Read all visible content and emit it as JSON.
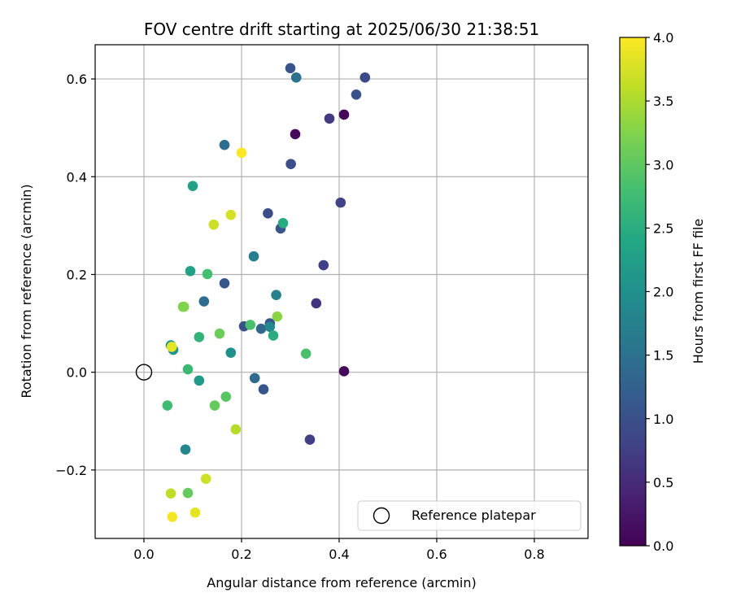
{
  "chart_data": {
    "type": "scatter",
    "title": "FOV centre drift starting at 2025/06/30 21:38:51",
    "xlabel": "Angular distance from reference (arcmin)",
    "ylabel": "Rotation from reference (arcmin)",
    "xlim": [
      -0.1,
      0.91
    ],
    "ylim": [
      -0.34,
      0.67
    ],
    "x_ticks": [
      "0.0",
      "0.2",
      "0.4",
      "0.6",
      "0.8"
    ],
    "x_tick_values": [
      0.0,
      0.2,
      0.4,
      0.6,
      0.8
    ],
    "y_ticks": [
      "−0.2",
      "0.0",
      "0.2",
      "0.4",
      "0.6"
    ],
    "y_tick_values": [
      -0.2,
      0.0,
      0.2,
      0.4,
      0.6
    ],
    "grid": true,
    "legend": {
      "position": "lower-right",
      "entries": [
        {
          "label": "Reference platepar",
          "marker": "open-circle"
        }
      ]
    },
    "reference_point": {
      "x": 0.0,
      "y": 0.0
    },
    "colorbar": {
      "label": "Hours from first FF file",
      "colormap": "viridis",
      "range": [
        0.0,
        4.0
      ],
      "ticks": [
        "0.0",
        "0.5",
        "1.0",
        "1.5",
        "2.0",
        "2.5",
        "3.0",
        "3.5",
        "4.0"
      ],
      "tick_values": [
        0.0,
        0.5,
        1.0,
        1.5,
        2.0,
        2.5,
        3.0,
        3.5,
        4.0
      ]
    },
    "points": [
      {
        "x": 0.41,
        "y": 0.527,
        "c": 0.05
      },
      {
        "x": 0.31,
        "y": 0.487,
        "c": 0.1
      },
      {
        "x": 0.41,
        "y": 0.002,
        "c": 0.1
      },
      {
        "x": 0.38,
        "y": 0.519,
        "c": 0.7
      },
      {
        "x": 0.353,
        "y": 0.141,
        "c": 0.6
      },
      {
        "x": 0.34,
        "y": -0.138,
        "c": 0.75
      },
      {
        "x": 0.368,
        "y": 0.219,
        "c": 0.75
      },
      {
        "x": 0.403,
        "y": 0.347,
        "c": 0.8
      },
      {
        "x": 0.453,
        "y": 0.603,
        "c": 0.9
      },
      {
        "x": 0.435,
        "y": 0.568,
        "c": 1.0
      },
      {
        "x": 0.301,
        "y": 0.426,
        "c": 0.95
      },
      {
        "x": 0.3,
        "y": 0.622,
        "c": 1.05
      },
      {
        "x": 0.254,
        "y": 0.325,
        "c": 0.95
      },
      {
        "x": 0.28,
        "y": 0.294,
        "c": 1.05
      },
      {
        "x": 0.205,
        "y": 0.094,
        "c": 1.0
      },
      {
        "x": 0.258,
        "y": 0.1,
        "c": 1.05
      },
      {
        "x": 0.245,
        "y": -0.035,
        "c": 1.1
      },
      {
        "x": 0.165,
        "y": 0.182,
        "c": 1.1
      },
      {
        "x": 0.24,
        "y": 0.089,
        "c": 1.35
      },
      {
        "x": 0.227,
        "y": -0.012,
        "c": 1.4
      },
      {
        "x": 0.312,
        "y": 0.603,
        "c": 1.5
      },
      {
        "x": 0.165,
        "y": 0.465,
        "c": 1.45
      },
      {
        "x": 0.123,
        "y": 0.145,
        "c": 1.45
      },
      {
        "x": 0.225,
        "y": 0.237,
        "c": 1.7
      },
      {
        "x": 0.271,
        "y": 0.158,
        "c": 1.75
      },
      {
        "x": 0.258,
        "y": 0.093,
        "c": 1.9
      },
      {
        "x": 0.085,
        "y": -0.158,
        "c": 1.85
      },
      {
        "x": 0.178,
        "y": 0.04,
        "c": 2.0
      },
      {
        "x": 0.06,
        "y": 0.046,
        "c": 2.05
      },
      {
        "x": 0.055,
        "y": 0.055,
        "c": 2.1
      },
      {
        "x": 0.113,
        "y": -0.017,
        "c": 2.15
      },
      {
        "x": 0.1,
        "y": 0.381,
        "c": 2.3
      },
      {
        "x": 0.095,
        "y": 0.207,
        "c": 2.3
      },
      {
        "x": 0.285,
        "y": 0.305,
        "c": 2.45
      },
      {
        "x": 0.265,
        "y": 0.075,
        "c": 2.5
      },
      {
        "x": 0.113,
        "y": 0.072,
        "c": 2.6
      },
      {
        "x": 0.09,
        "y": 0.006,
        "c": 2.7
      },
      {
        "x": 0.048,
        "y": -0.068,
        "c": 2.75
      },
      {
        "x": 0.13,
        "y": 0.201,
        "c": 2.8
      },
      {
        "x": 0.218,
        "y": 0.097,
        "c": 2.85
      },
      {
        "x": 0.332,
        "y": 0.038,
        "c": 2.85
      },
      {
        "x": 0.168,
        "y": -0.05,
        "c": 2.95
      },
      {
        "x": 0.145,
        "y": -0.068,
        "c": 3.05
      },
      {
        "x": 0.155,
        "y": 0.079,
        "c": 3.1
      },
      {
        "x": 0.09,
        "y": -0.247,
        "c": 3.05
      },
      {
        "x": 0.08,
        "y": 0.134,
        "c": 3.2
      },
      {
        "x": 0.082,
        "y": 0.134,
        "c": 3.25
      },
      {
        "x": 0.273,
        "y": 0.114,
        "c": 3.3
      },
      {
        "x": 0.188,
        "y": -0.117,
        "c": 3.55
      },
      {
        "x": 0.055,
        "y": -0.248,
        "c": 3.6
      },
      {
        "x": 0.057,
        "y": 0.052,
        "c": 3.85
      },
      {
        "x": 0.127,
        "y": -0.218,
        "c": 3.7
      },
      {
        "x": 0.143,
        "y": 0.302,
        "c": 3.7
      },
      {
        "x": 0.178,
        "y": 0.322,
        "c": 3.75
      },
      {
        "x": 0.105,
        "y": -0.287,
        "c": 3.85
      },
      {
        "x": 0.058,
        "y": -0.296,
        "c": 3.95
      },
      {
        "x": 0.2,
        "y": 0.449,
        "c": 4.0
      }
    ]
  }
}
